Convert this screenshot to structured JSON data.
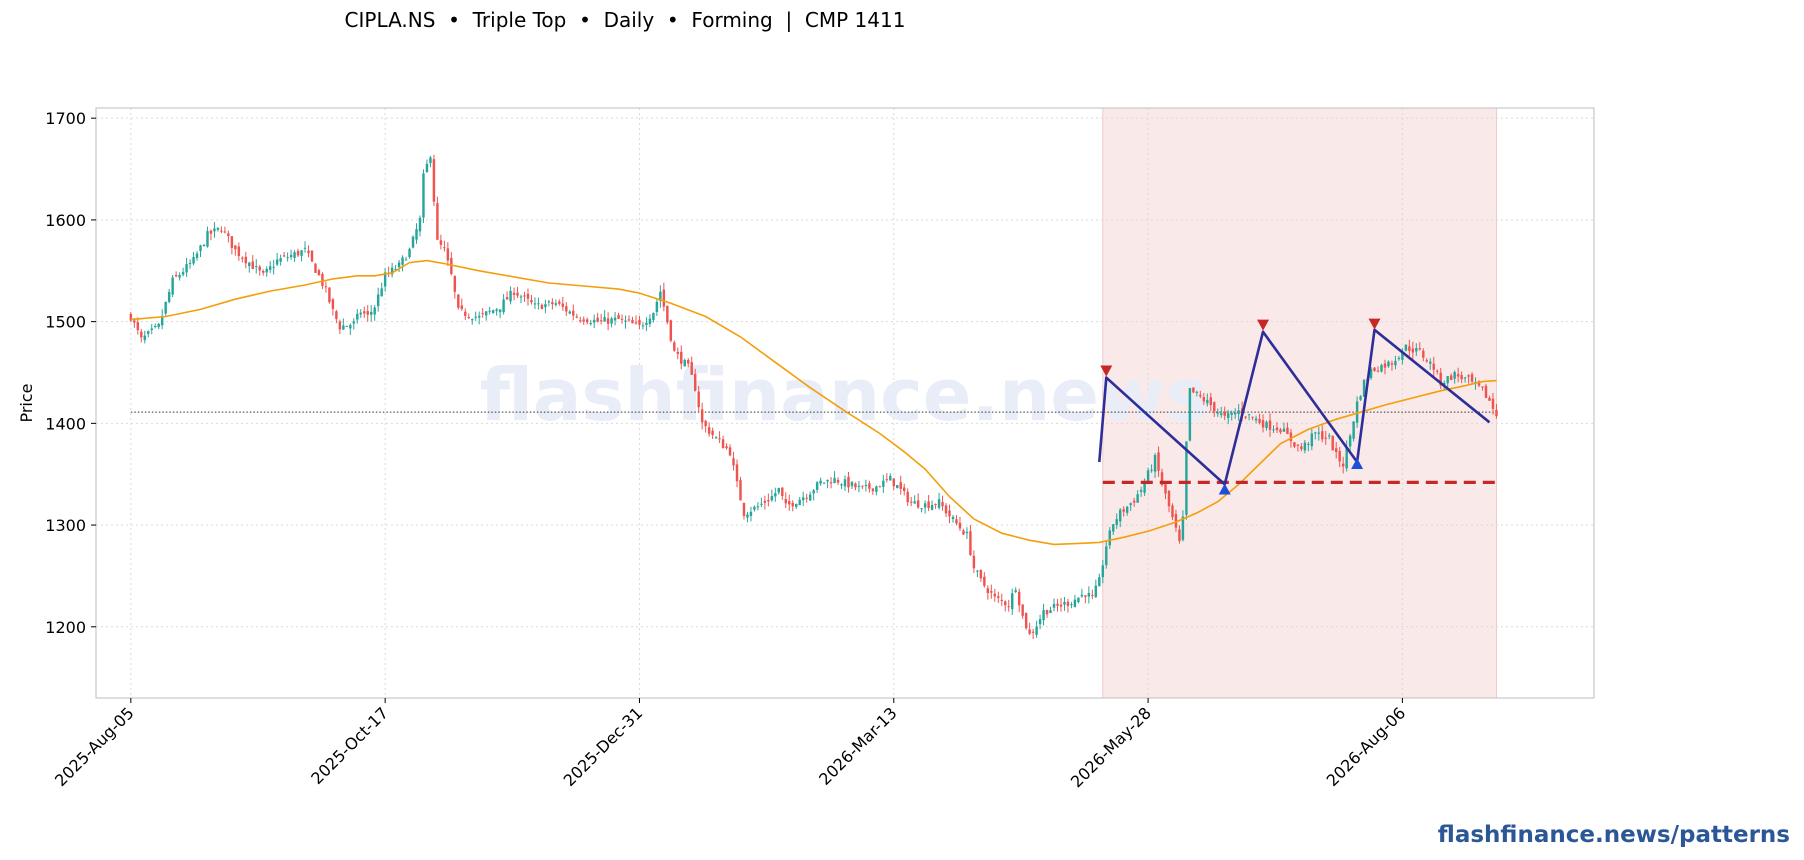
{
  "header": {
    "title": "CIPLA.NS  •  Triple Top  •  Daily  •  Forming  |  CMP 1411"
  },
  "footer": {
    "link": "flashfinance.news/patterns"
  },
  "watermark": "flashfinance.news",
  "colors": {
    "up": "#26a69a",
    "down": "#ef5350",
    "ma": "#f59e0b",
    "pattern_line": "#2e2e9a",
    "neckline": "#c62828",
    "peak_marker": "#c62828",
    "trough_marker": "#1e4fd8",
    "highlight": "#f9e9e9",
    "cmp_line": "#333333",
    "watermark": "#e9edf7"
  },
  "chart_data": {
    "type": "candlestick",
    "title": "CIPLA.NS  •  Triple Top  •  Daily  •  Forming  |  CMP 1411",
    "ylabel": "Price",
    "xlabel": "",
    "ylim": [
      1130,
      1710
    ],
    "yticks": [
      1200,
      1300,
      1400,
      1500,
      1600,
      1700
    ],
    "xticks": [
      "2025-Aug-05",
      "2025-Oct-17",
      "2025-Dec-31",
      "2026-Mar-13",
      "2026-May-28",
      "2026-Aug-06"
    ],
    "x_index_range": [
      -10,
      420
    ],
    "xtick_index": [
      0,
      73,
      146,
      219,
      292,
      365
    ],
    "grid": true,
    "cmp": 1411,
    "pattern": {
      "name": "Triple Top",
      "status": "Forming",
      "zone_index": [
        279,
        392
      ],
      "zigzag": [
        [
          278,
          1362
        ],
        [
          280,
          1445
        ],
        [
          314,
          1340
        ],
        [
          325,
          1490
        ],
        [
          352,
          1362
        ],
        [
          357,
          1492
        ],
        [
          390,
          1401
        ]
      ],
      "peaks": [
        [
          280,
          1452
        ],
        [
          325,
          1497
        ],
        [
          357,
          1498
        ]
      ],
      "troughs": [
        [
          314,
          1335
        ],
        [
          352,
          1360
        ]
      ],
      "neckline": {
        "value": 1342,
        "from_index": 279,
        "to_index": 392
      }
    },
    "ma_series": [
      [
        0,
        1502
      ],
      [
        10,
        1505
      ],
      [
        20,
        1512
      ],
      [
        30,
        1522
      ],
      [
        40,
        1530
      ],
      [
        50,
        1536
      ],
      [
        58,
        1542
      ],
      [
        65,
        1545
      ],
      [
        70,
        1545
      ],
      [
        75,
        1548
      ],
      [
        80,
        1558
      ],
      [
        85,
        1560
      ],
      [
        90,
        1557
      ],
      [
        100,
        1550
      ],
      [
        110,
        1544
      ],
      [
        120,
        1538
      ],
      [
        130,
        1535
      ],
      [
        140,
        1532
      ],
      [
        146,
        1528
      ],
      [
        155,
        1518
      ],
      [
        165,
        1505
      ],
      [
        175,
        1485
      ],
      [
        185,
        1460
      ],
      [
        195,
        1435
      ],
      [
        205,
        1412
      ],
      [
        215,
        1390
      ],
      [
        222,
        1372
      ],
      [
        228,
        1355
      ],
      [
        235,
        1328
      ],
      [
        242,
        1306
      ],
      [
        250,
        1292
      ],
      [
        258,
        1285
      ],
      [
        265,
        1281
      ],
      [
        272,
        1282
      ],
      [
        278,
        1283
      ],
      [
        285,
        1288
      ],
      [
        292,
        1294
      ],
      [
        300,
        1303
      ],
      [
        306,
        1312
      ],
      [
        312,
        1323
      ],
      [
        318,
        1340
      ],
      [
        324,
        1360
      ],
      [
        330,
        1380
      ],
      [
        338,
        1394
      ],
      [
        346,
        1404
      ],
      [
        352,
        1410
      ],
      [
        360,
        1418
      ],
      [
        368,
        1425
      ],
      [
        376,
        1432
      ],
      [
        383,
        1437
      ],
      [
        388,
        1441
      ],
      [
        392,
        1442
      ]
    ],
    "anchors": [
      [
        0,
        1505
      ],
      [
        3,
        1482
      ],
      [
        8,
        1495
      ],
      [
        12,
        1540
      ],
      [
        18,
        1560
      ],
      [
        22,
        1585
      ],
      [
        26,
        1592
      ],
      [
        30,
        1570
      ],
      [
        34,
        1558
      ],
      [
        38,
        1545
      ],
      [
        42,
        1560
      ],
      [
        46,
        1565
      ],
      [
        50,
        1570
      ],
      [
        54,
        1545
      ],
      [
        56,
        1530
      ],
      [
        58,
        1510
      ],
      [
        60,
        1495
      ],
      [
        64,
        1498
      ],
      [
        66,
        1510
      ],
      [
        68,
        1505
      ],
      [
        70,
        1515
      ],
      [
        73,
        1545
      ],
      [
        77,
        1555
      ],
      [
        80,
        1570
      ],
      [
        83,
        1600
      ],
      [
        84,
        1642
      ],
      [
        86,
        1665
      ],
      [
        87,
        1620
      ],
      [
        88,
        1578
      ],
      [
        90,
        1570
      ],
      [
        92,
        1545
      ],
      [
        94,
        1510
      ],
      [
        100,
        1504
      ],
      [
        106,
        1515
      ],
      [
        110,
        1530
      ],
      [
        116,
        1515
      ],
      [
        122,
        1518
      ],
      [
        128,
        1505
      ],
      [
        134,
        1500
      ],
      [
        140,
        1502
      ],
      [
        146,
        1495
      ],
      [
        150,
        1510
      ],
      [
        152,
        1530
      ],
      [
        154,
        1500
      ],
      [
        156,
        1470
      ],
      [
        160,
        1455
      ],
      [
        162,
        1435
      ],
      [
        164,
        1400
      ],
      [
        168,
        1385
      ],
      [
        172,
        1372
      ],
      [
        174,
        1340
      ],
      [
        176,
        1312
      ],
      [
        180,
        1318
      ],
      [
        184,
        1328
      ],
      [
        186,
        1335
      ],
      [
        188,
        1318
      ],
      [
        190,
        1322
      ],
      [
        194,
        1330
      ],
      [
        198,
        1342
      ],
      [
        202,
        1345
      ],
      [
        206,
        1340
      ],
      [
        210,
        1335
      ],
      [
        214,
        1338
      ],
      [
        218,
        1345
      ],
      [
        220,
        1338
      ],
      [
        224,
        1322
      ],
      [
        228,
        1320
      ],
      [
        232,
        1322
      ],
      [
        236,
        1305
      ],
      [
        240,
        1290
      ],
      [
        242,
        1258
      ],
      [
        244,
        1245
      ],
      [
        248,
        1228
      ],
      [
        252,
        1222
      ],
      [
        254,
        1240
      ],
      [
        256,
        1210
      ],
      [
        258,
        1192
      ],
      [
        260,
        1202
      ],
      [
        262,
        1215
      ],
      [
        266,
        1220
      ],
      [
        270,
        1225
      ],
      [
        274,
        1233
      ],
      [
        276,
        1228
      ],
      [
        278,
        1245
      ],
      [
        280,
        1280
      ],
      [
        282,
        1302
      ],
      [
        284,
        1312
      ],
      [
        286,
        1318
      ],
      [
        288,
        1325
      ],
      [
        290,
        1335
      ],
      [
        292,
        1350
      ],
      [
        294,
        1365
      ],
      [
        296,
        1340
      ],
      [
        298,
        1318
      ],
      [
        300,
        1295
      ],
      [
        301,
        1282
      ],
      [
        302,
        1305
      ],
      [
        303,
        1380
      ],
      [
        304,
        1432
      ],
      [
        306,
        1428
      ],
      [
        310,
        1418
      ],
      [
        314,
        1405
      ],
      [
        318,
        1412
      ],
      [
        322,
        1406
      ],
      [
        326,
        1398
      ],
      [
        330,
        1395
      ],
      [
        334,
        1380
      ],
      [
        336,
        1375
      ],
      [
        340,
        1390
      ],
      [
        344,
        1385
      ],
      [
        346,
        1368
      ],
      [
        348,
        1360
      ],
      [
        350,
        1388
      ],
      [
        352,
        1420
      ],
      [
        354,
        1440
      ],
      [
        356,
        1452
      ],
      [
        358,
        1455
      ],
      [
        362,
        1460
      ],
      [
        366,
        1475
      ],
      [
        370,
        1470
      ],
      [
        374,
        1455
      ],
      [
        376,
        1440
      ],
      [
        380,
        1448
      ],
      [
        384,
        1442
      ],
      [
        388,
        1432
      ],
      [
        390,
        1422
      ],
      [
        392,
        1408
      ]
    ]
  }
}
